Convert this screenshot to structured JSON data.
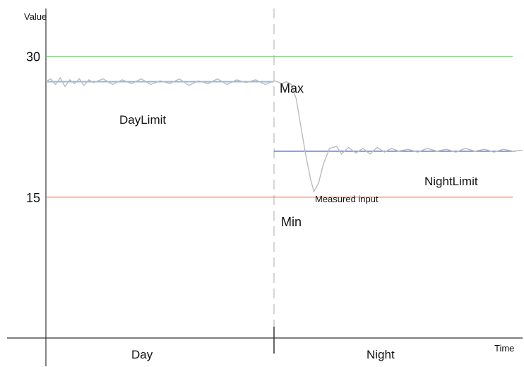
{
  "chart_data": {
    "type": "line",
    "title": "",
    "ylabel": "Value",
    "xlabel": "Time",
    "yticks": [
      30,
      15
    ],
    "ylim": [
      0,
      36
    ],
    "x_labels": [
      "Day",
      "Night"
    ],
    "reference_lines": [
      {
        "label": "Max",
        "value": 30,
        "color": "#6cc46c"
      },
      {
        "label": "Min",
        "value": 15,
        "color": "#f07a5a"
      }
    ],
    "limits": [
      {
        "label": "DayLimit",
        "period": "Day",
        "value": 27.3,
        "color": "#8fb8ee"
      },
      {
        "label": "NightLimit",
        "period": "Night",
        "value": 19.9,
        "color": "#5a7fe6"
      }
    ],
    "series": [
      {
        "name": "Measured input",
        "color": "#bbbbbb",
        "points": [
          [
            0.0,
            27.3
          ],
          [
            0.01,
            27.6
          ],
          [
            0.02,
            27.0
          ],
          [
            0.03,
            27.7
          ],
          [
            0.04,
            26.8
          ],
          [
            0.05,
            27.5
          ],
          [
            0.06,
            27.1
          ],
          [
            0.07,
            27.6
          ],
          [
            0.08,
            26.9
          ],
          [
            0.09,
            27.5
          ],
          [
            0.1,
            27.2
          ],
          [
            0.12,
            27.6
          ],
          [
            0.14,
            27.0
          ],
          [
            0.16,
            27.5
          ],
          [
            0.18,
            27.1
          ],
          [
            0.2,
            27.6
          ],
          [
            0.22,
            27.0
          ],
          [
            0.24,
            27.4
          ],
          [
            0.26,
            27.1
          ],
          [
            0.28,
            27.6
          ],
          [
            0.3,
            26.9
          ],
          [
            0.32,
            27.4
          ],
          [
            0.34,
            27.1
          ],
          [
            0.36,
            27.6
          ],
          [
            0.38,
            27.0
          ],
          [
            0.4,
            27.5
          ],
          [
            0.42,
            27.2
          ],
          [
            0.44,
            27.5
          ],
          [
            0.46,
            27.0
          ],
          [
            0.48,
            27.4
          ],
          [
            0.495,
            27.1
          ],
          [
            0.505,
            27.3
          ],
          [
            0.515,
            27.0
          ],
          [
            0.525,
            25.5
          ],
          [
            0.535,
            22.5
          ],
          [
            0.545,
            19.5
          ],
          [
            0.555,
            17.0
          ],
          [
            0.562,
            15.6
          ],
          [
            0.572,
            16.5
          ],
          [
            0.582,
            18.5
          ],
          [
            0.595,
            20.2
          ],
          [
            0.61,
            20.4
          ],
          [
            0.62,
            19.6
          ],
          [
            0.635,
            20.3
          ],
          [
            0.65,
            19.7
          ],
          [
            0.665,
            20.2
          ],
          [
            0.68,
            19.6
          ],
          [
            0.695,
            20.3
          ],
          [
            0.71,
            19.8
          ],
          [
            0.725,
            20.2
          ],
          [
            0.74,
            19.9
          ],
          [
            0.76,
            20.1
          ],
          [
            0.78,
            19.8
          ],
          [
            0.8,
            20.2
          ],
          [
            0.82,
            19.9
          ],
          [
            0.84,
            20.1
          ],
          [
            0.86,
            19.8
          ],
          [
            0.88,
            20.2
          ],
          [
            0.9,
            19.9
          ],
          [
            0.92,
            20.1
          ],
          [
            0.94,
            19.8
          ],
          [
            0.96,
            20.1
          ],
          [
            0.98,
            19.9
          ],
          [
            1.0,
            20.0
          ]
        ]
      }
    ],
    "annotations": [
      "Max",
      "Min",
      "DayLimit",
      "NightLimit",
      "Measured input"
    ],
    "legend": "none",
    "grid": false
  }
}
